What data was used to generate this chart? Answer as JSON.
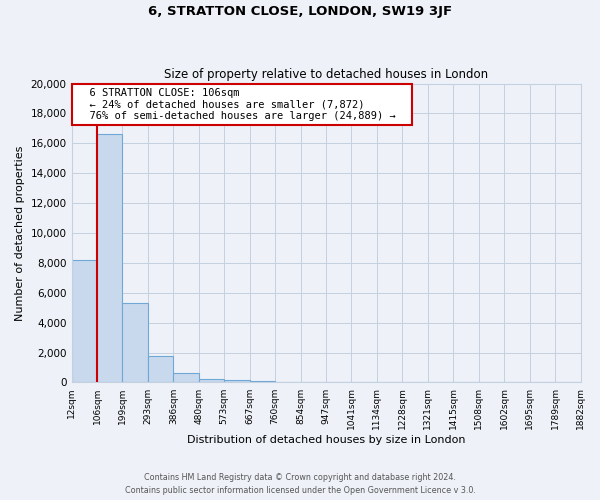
{
  "title": "6, STRATTON CLOSE, LONDON, SW19 3JF",
  "subtitle": "Size of property relative to detached houses in London",
  "xlabel": "Distribution of detached houses by size in London",
  "ylabel": "Number of detached properties",
  "bar_values": [
    8200,
    16600,
    5300,
    1750,
    650,
    250,
    150,
    100,
    0,
    0,
    0,
    0,
    0,
    0,
    0,
    0,
    0,
    0,
    0,
    0
  ],
  "tick_labels": [
    "12sqm",
    "106sqm",
    "199sqm",
    "293sqm",
    "386sqm",
    "480sqm",
    "573sqm",
    "667sqm",
    "760sqm",
    "854sqm",
    "947sqm",
    "1041sqm",
    "1134sqm",
    "1228sqm",
    "1321sqm",
    "1415sqm",
    "1508sqm",
    "1602sqm",
    "1695sqm",
    "1789sqm",
    "1882sqm"
  ],
  "bar_color": "#c8d9ed",
  "bar_edge_color": "#6fa8d4",
  "red_line_x": 1,
  "red_line_color": "#cc0000",
  "annotation_title": "6 STRATTON CLOSE: 106sqm",
  "annotation_line1": "← 24% of detached houses are smaller (7,872)",
  "annotation_line2": "76% of semi-detached houses are larger (24,889) →",
  "annotation_box_color": "#ffffff",
  "annotation_box_edge": "#cc0000",
  "ylim": [
    0,
    20000
  ],
  "yticks": [
    0,
    2000,
    4000,
    6000,
    8000,
    10000,
    12000,
    14000,
    16000,
    18000,
    20000
  ],
  "footer1": "Contains HM Land Registry data © Crown copyright and database right 2024.",
  "footer2": "Contains public sector information licensed under the Open Government Licence v 3.0.",
  "fig_bg_color": "#eef2f8",
  "plot_bg_color": "#eef2f8",
  "grid_color": "#c5d0e0"
}
